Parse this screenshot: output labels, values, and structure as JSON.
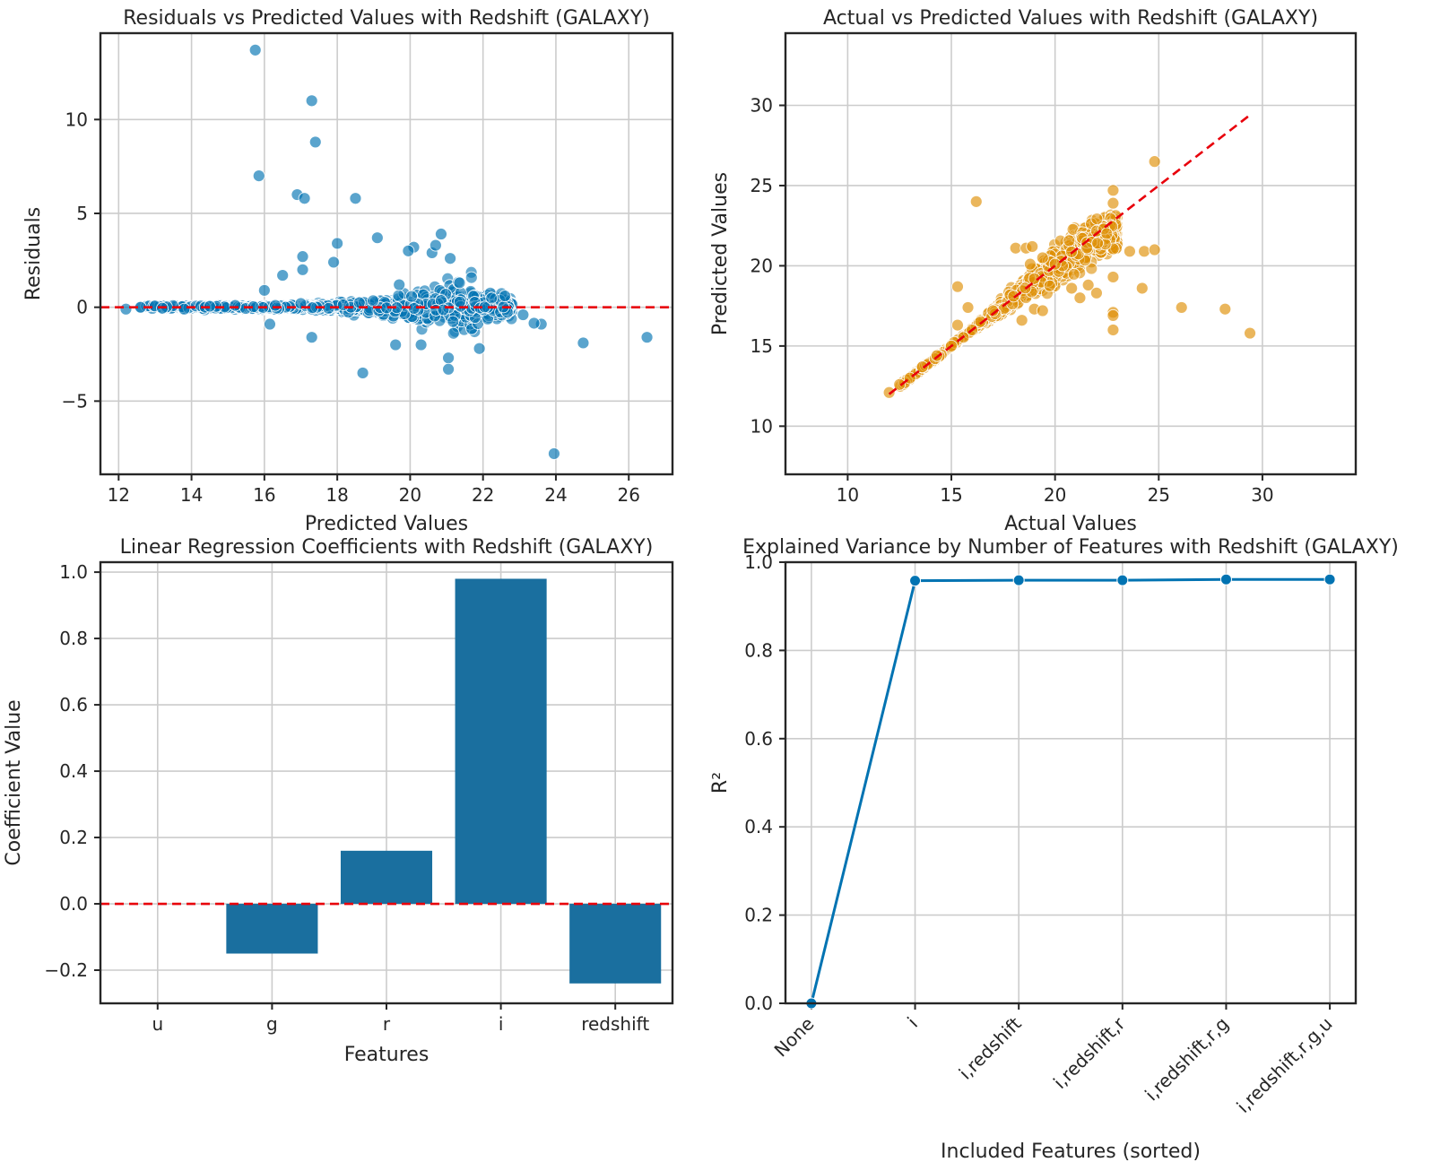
{
  "chart_data": [
    {
      "type": "scatter",
      "title": "Residuals vs Predicted Values with Redshift (GALAXY)",
      "xlabel": "Predicted Values",
      "ylabel": "Residuals",
      "xlim": [
        11.5,
        27.2
      ],
      "ylim": [
        -8.9,
        14.6
      ],
      "xticks": [
        12,
        14,
        16,
        18,
        20,
        22,
        24,
        26
      ],
      "yticks": [
        -5,
        0,
        5,
        10
      ],
      "ytick_labels": [
        "−5",
        "0",
        "5",
        "10"
      ],
      "reference_line": {
        "type": "horizontal",
        "y": 0,
        "color": "#e8000b",
        "style": "dashed"
      },
      "color": "#0173b2",
      "points": [
        [
          15.75,
          13.7
        ],
        [
          17.3,
          11.0
        ],
        [
          17.4,
          8.8
        ],
        [
          15.85,
          7.0
        ],
        [
          16.9,
          6.0
        ],
        [
          17.1,
          5.8
        ],
        [
          18.5,
          5.8
        ],
        [
          19.1,
          3.7
        ],
        [
          17.05,
          2.7
        ],
        [
          17.05,
          2.0
        ],
        [
          18.0,
          3.4
        ],
        [
          17.9,
          2.4
        ],
        [
          16.5,
          1.7
        ],
        [
          20.85,
          3.9
        ],
        [
          20.1,
          3.2
        ],
        [
          19.95,
          3.0
        ],
        [
          20.6,
          2.9
        ],
        [
          21.1,
          2.6
        ],
        [
          20.7,
          3.3
        ],
        [
          19.7,
          1.2
        ],
        [
          16.0,
          0.9
        ],
        [
          17.3,
          -1.6
        ],
        [
          16.15,
          -0.9
        ],
        [
          18.7,
          -3.5
        ],
        [
          19.6,
          -2.0
        ],
        [
          20.3,
          -2.0
        ],
        [
          21.05,
          -2.7
        ],
        [
          21.05,
          -3.3
        ],
        [
          21.9,
          -2.2
        ],
        [
          23.95,
          -7.8
        ],
        [
          24.75,
          -1.9
        ],
        [
          26.5,
          -1.6
        ],
        [
          23.6,
          -0.9
        ],
        [
          23.4,
          -0.85
        ],
        [
          23.1,
          -0.4
        ],
        [
          22.6,
          0.6
        ],
        [
          12.2,
          -0.1
        ],
        [
          12.6,
          0.0
        ],
        [
          13.2,
          -0.05
        ],
        [
          13.8,
          -0.1
        ],
        [
          14.5,
          0.05
        ],
        [
          15.2,
          0.1
        ],
        [
          16.3,
          0.1
        ],
        [
          17.0,
          0.2
        ]
      ],
      "dense_band": {
        "x_range": [
          12.2,
          22.8
        ],
        "description": "dense cloud of residuals near zero"
      }
    },
    {
      "type": "scatter",
      "title": "Actual vs Predicted Values with Redshift (GALAXY)",
      "xlabel": "Actual Values",
      "ylabel": "Predicted Values",
      "xlim": [
        7.0,
        34.5
      ],
      "ylim": [
        7.0,
        34.5
      ],
      "xticks": [
        10,
        15,
        20,
        25,
        30
      ],
      "yticks": [
        10,
        15,
        20,
        25,
        30
      ],
      "reference_line": {
        "type": "diagonal",
        "from": [
          12,
          12
        ],
        "to": [
          29.4,
          29.4
        ],
        "color": "#e8000b",
        "style": "dashed"
      },
      "color": "#de8f05",
      "points": [
        [
          16.2,
          24.0
        ],
        [
          24.8,
          26.5
        ],
        [
          22.8,
          24.7
        ],
        [
          22.8,
          23.9
        ],
        [
          15.3,
          18.7
        ],
        [
          15.8,
          17.4
        ],
        [
          15.3,
          16.3
        ],
        [
          18.1,
          21.1
        ],
        [
          18.6,
          21.1
        ],
        [
          18.9,
          21.2
        ],
        [
          18.8,
          20.1
        ],
        [
          19.4,
          20.5
        ],
        [
          19.0,
          17.3
        ],
        [
          19.4,
          17.2
        ],
        [
          18.4,
          16.6
        ],
        [
          20.8,
          18.6
        ],
        [
          21.2,
          18.0
        ],
        [
          21.6,
          18.8
        ],
        [
          22.0,
          18.3
        ],
        [
          22.8,
          17.1
        ],
        [
          22.8,
          16.9
        ],
        [
          22.8,
          16.0
        ],
        [
          22.8,
          19.3
        ],
        [
          23.6,
          20.9
        ],
        [
          24.3,
          20.9
        ],
        [
          24.8,
          21.0
        ],
        [
          24.2,
          18.6
        ],
        [
          26.1,
          17.4
        ],
        [
          28.2,
          17.3
        ],
        [
          29.4,
          15.8
        ],
        [
          12.0,
          12.1
        ],
        [
          12.5,
          12.6
        ],
        [
          13.0,
          13.0
        ],
        [
          13.6,
          13.7
        ],
        [
          14.3,
          14.4
        ],
        [
          15.0,
          15.0
        ],
        [
          16.0,
          16.0
        ],
        [
          17.0,
          17.2
        ],
        [
          18.0,
          18.1
        ],
        [
          19.0,
          19.2
        ],
        [
          20.0,
          20.1
        ]
      ],
      "dense_band": {
        "x_range": [
          12,
          23
        ],
        "description": "dense cloud along the diagonal"
      }
    },
    {
      "type": "bar",
      "title": "Linear Regression Coefficients with Redshift (GALAXY)",
      "xlabel": "Features",
      "ylabel": "Coefficient Value",
      "categories": [
        "u",
        "g",
        "r",
        "i",
        "redshift"
      ],
      "values": [
        0.0,
        -0.15,
        0.16,
        0.98,
        -0.24
      ],
      "ylim": [
        -0.3,
        1.03
      ],
      "yticks": [
        -0.2,
        0.0,
        0.2,
        0.4,
        0.6,
        0.8,
        1.0
      ],
      "ytick_labels": [
        "−0.2",
        "0.0",
        "0.2",
        "0.4",
        "0.6",
        "0.8",
        "1.0"
      ],
      "reference_line": {
        "type": "horizontal",
        "y": 0,
        "color": "#e8000b",
        "style": "dashed"
      },
      "color": "#1a6f9f"
    },
    {
      "type": "line",
      "title": "Explained Variance by Number of Features with Redshift (GALAXY)",
      "xlabel": "Included Features (sorted)",
      "ylabel": "R²",
      "categories": [
        "None",
        "i",
        "i,redshift",
        "i,redshift,r",
        "i,redshift,r,g",
        "i,redshift,r,g,u"
      ],
      "values": [
        0.0,
        0.958,
        0.959,
        0.959,
        0.961,
        0.961
      ],
      "ylim": [
        0.0,
        1.0
      ],
      "yticks": [
        0.0,
        0.2,
        0.4,
        0.6,
        0.8,
        1.0
      ],
      "ytick_labels": [
        "0.0",
        "0.2",
        "0.4",
        "0.6",
        "0.8",
        "1.0"
      ],
      "color": "#0173b2"
    }
  ]
}
